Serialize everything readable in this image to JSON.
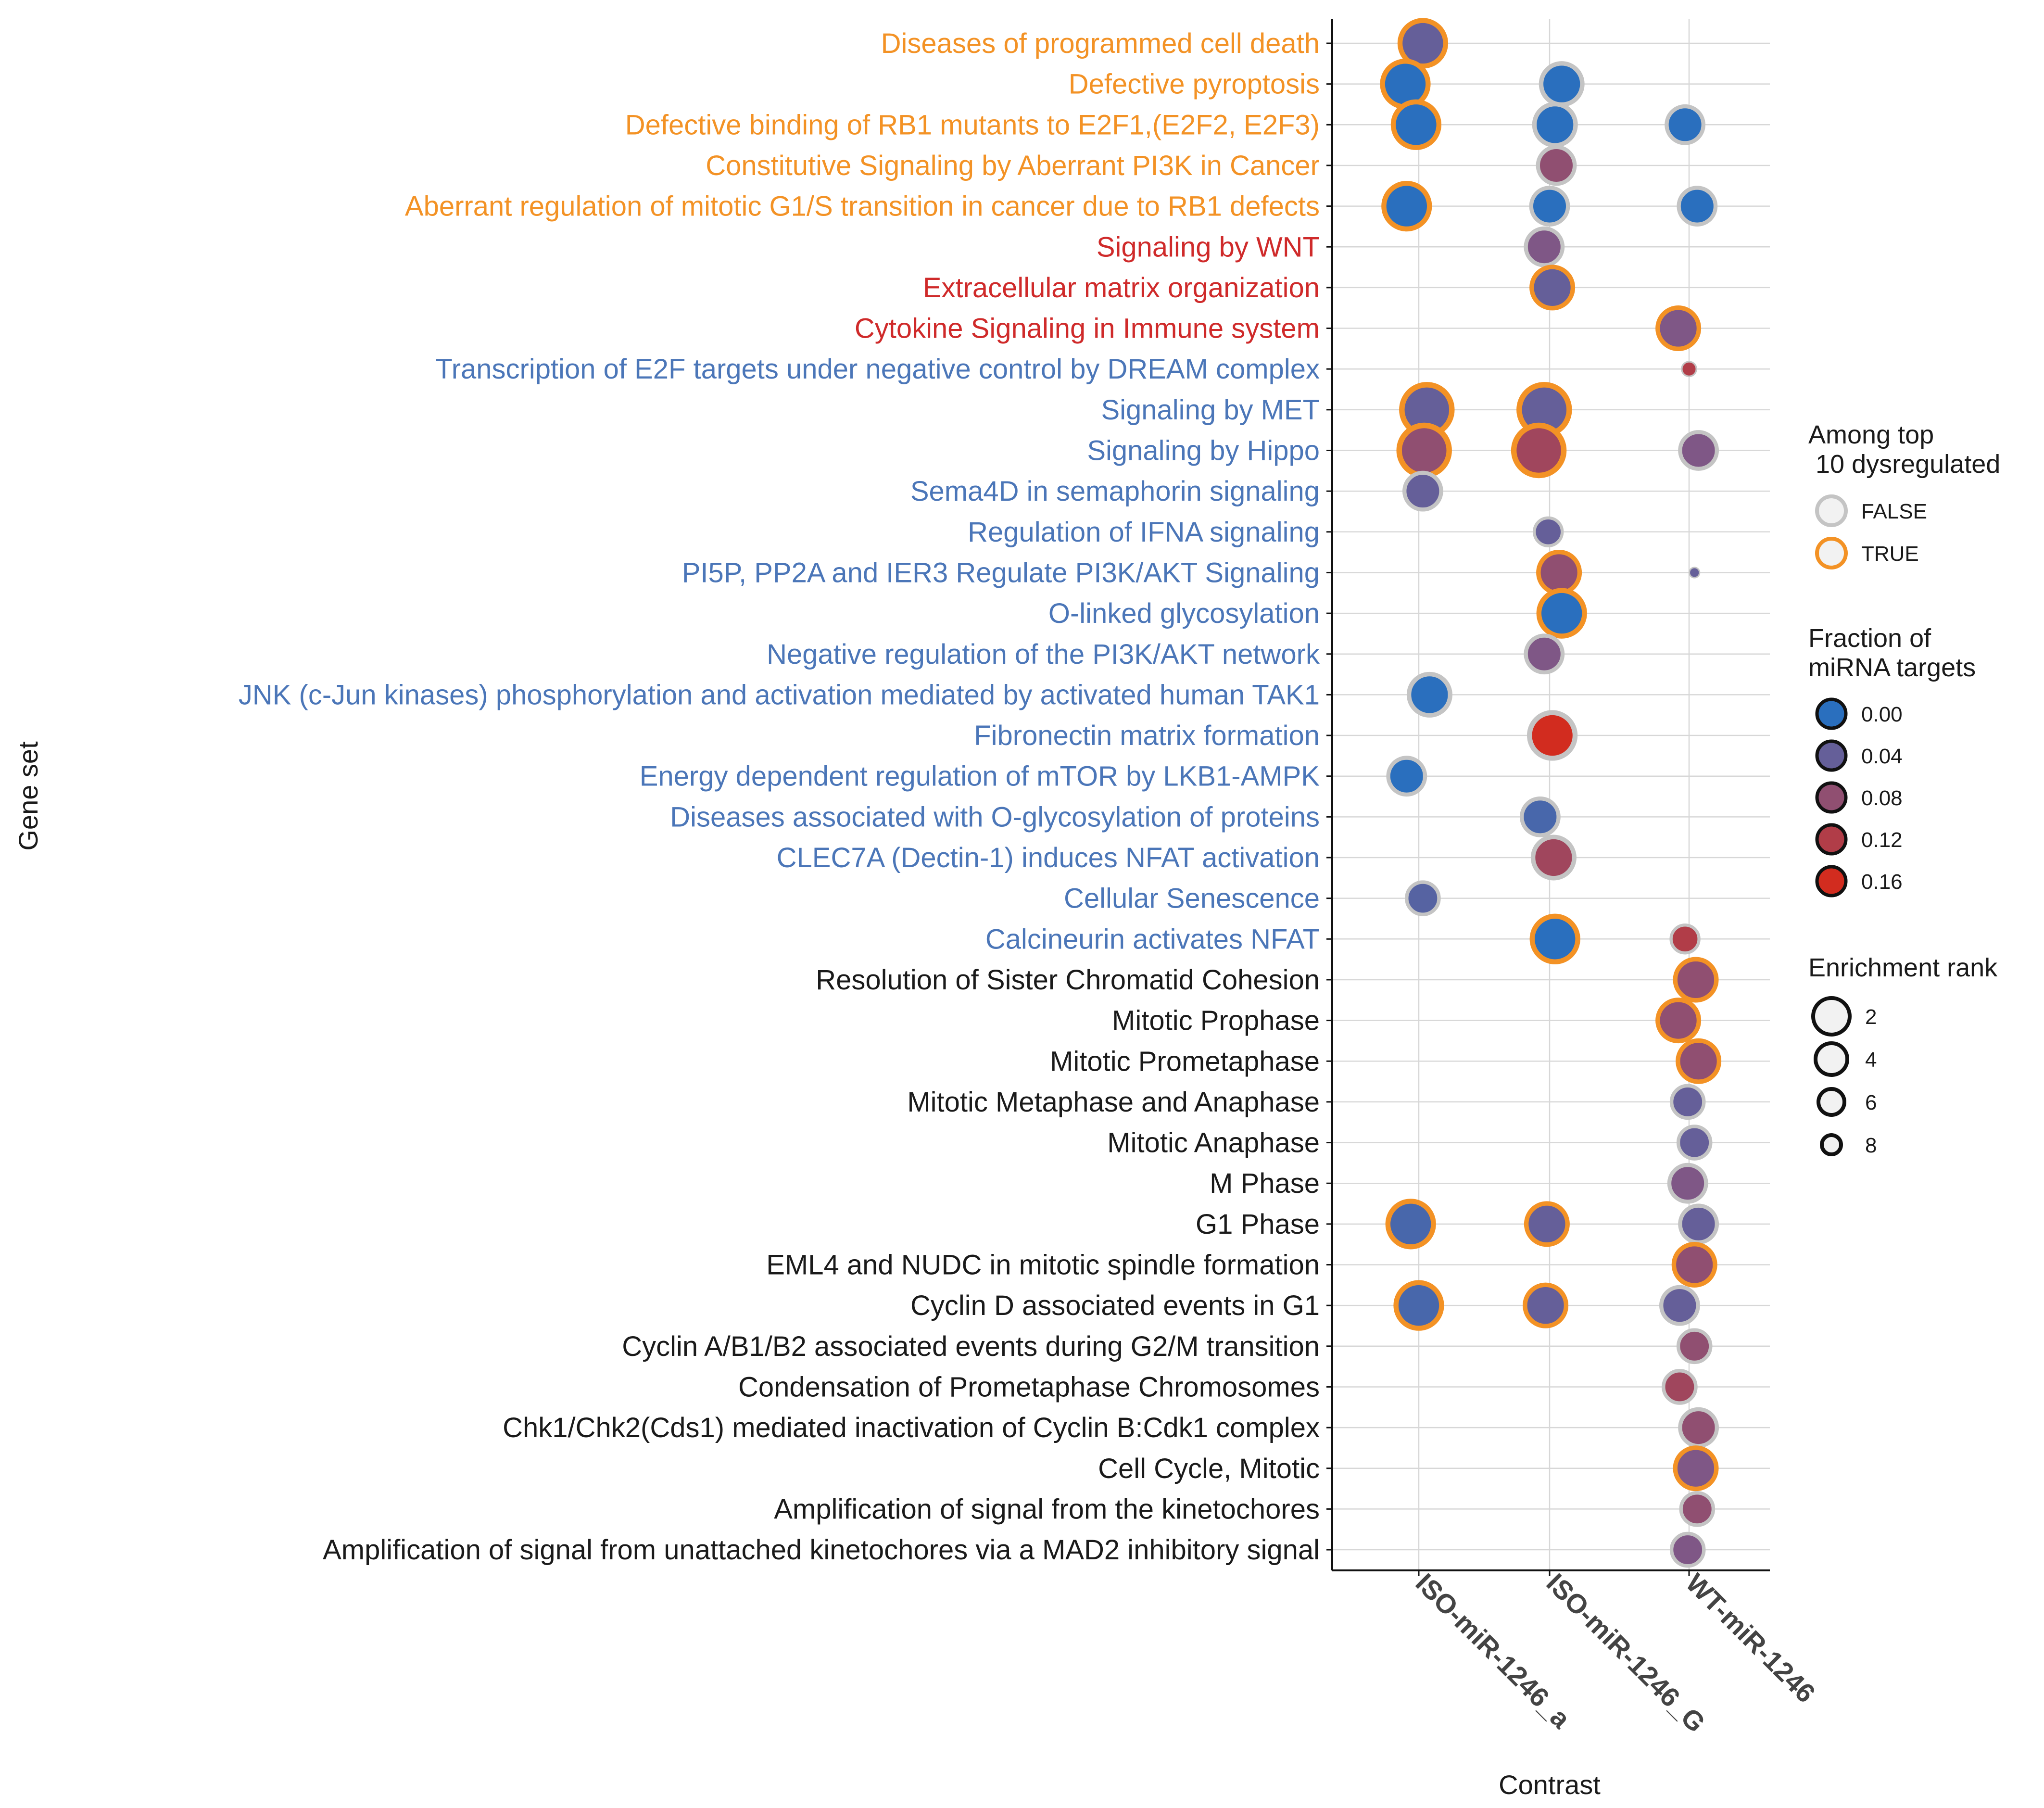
{
  "chart_data": {
    "type": "scatter",
    "title": "",
    "xlabel": "Contrast",
    "ylabel": "Gene set",
    "x_categories": [
      "ISO-miR-1246_a",
      "ISO-miR-1246_G",
      "WT-miR-1246"
    ],
    "group_colors": {
      "orange": "#f39225",
      "red": "#cf2a2a",
      "blue": "#4b76b8",
      "black": "#1a1a1a"
    },
    "ring_colors": {
      "FALSE": "#c4c4c4",
      "TRUE": "#f39225"
    },
    "fill_scale": {
      "low": "#2a6fbe",
      "mid": "#7a5a8c",
      "high": "#e3230b",
      "domain": [
        0,
        0.18
      ]
    },
    "gene_sets": [
      {
        "label": "Diseases of programmed cell death",
        "group": "orange"
      },
      {
        "label": "Defective pyroptosis",
        "group": "orange"
      },
      {
        "label": "Defective binding of RB1 mutants to E2F1,(E2F2, E2F3)",
        "group": "orange"
      },
      {
        "label": "Constitutive Signaling by Aberrant PI3K in Cancer",
        "group": "orange"
      },
      {
        "label": "Aberrant regulation of mitotic G1/S transition in cancer due to RB1 defects",
        "group": "orange"
      },
      {
        "label": "Signaling by WNT",
        "group": "red"
      },
      {
        "label": "Extracellular matrix organization",
        "group": "red"
      },
      {
        "label": "Cytokine Signaling in Immune system",
        "group": "red"
      },
      {
        "label": "Transcription of E2F targets under negative control by DREAM complex",
        "group": "blue"
      },
      {
        "label": "Signaling by MET",
        "group": "blue"
      },
      {
        "label": "Signaling by Hippo",
        "group": "blue"
      },
      {
        "label": "Sema4D in semaphorin signaling",
        "group": "blue"
      },
      {
        "label": "Regulation of IFNA signaling",
        "group": "blue"
      },
      {
        "label": "PI5P, PP2A and IER3 Regulate PI3K/AKT Signaling",
        "group": "blue"
      },
      {
        "label": "O-linked glycosylation",
        "group": "blue"
      },
      {
        "label": "Negative regulation of the PI3K/AKT network",
        "group": "blue"
      },
      {
        "label": "JNK (c-Jun kinases) phosphorylation and activation mediated by activated human TAK1",
        "group": "blue"
      },
      {
        "label": "Fibronectin matrix formation",
        "group": "blue"
      },
      {
        "label": "Energy dependent regulation of mTOR by LKB1-AMPK",
        "group": "blue"
      },
      {
        "label": "Diseases associated with O-glycosylation of proteins",
        "group": "blue"
      },
      {
        "label": "CLEC7A (Dectin-1) induces NFAT activation",
        "group": "blue"
      },
      {
        "label": "Cellular Senescence",
        "group": "blue"
      },
      {
        "label": "Calcineurin activates NFAT",
        "group": "blue"
      },
      {
        "label": "Resolution of Sister Chromatid Cohesion",
        "group": "black"
      },
      {
        "label": "Mitotic Prophase",
        "group": "black"
      },
      {
        "label": "Mitotic Prometaphase",
        "group": "black"
      },
      {
        "label": "Mitotic Metaphase and Anaphase",
        "group": "black"
      },
      {
        "label": "Mitotic Anaphase",
        "group": "black"
      },
      {
        "label": "M Phase",
        "group": "black"
      },
      {
        "label": "G1 Phase",
        "group": "black"
      },
      {
        "label": "EML4 and NUDC in mitotic spindle formation",
        "group": "black"
      },
      {
        "label": "Cyclin D associated events in G1",
        "group": "black"
      },
      {
        "label": "Cyclin A/B1/B2 associated events during G2/M transition",
        "group": "black"
      },
      {
        "label": "Condensation of Prometaphase Chromosomes",
        "group": "black"
      },
      {
        "label": "Chk1/Chk2(Cds1) mediated inactivation of Cyclin B:Cdk1 complex",
        "group": "black"
      },
      {
        "label": "Cell Cycle, Mitotic",
        "group": "black"
      },
      {
        "label": "Amplification of signal from the kinetochores",
        "group": "black"
      },
      {
        "label": "Amplification of signal from unattached kinetochores via a MAD2 inhibitory signal",
        "group": "black"
      }
    ],
    "points": [
      {
        "gene_set": "Diseases of programmed cell death",
        "contrast": "ISO-miR-1246_a",
        "jitter": 0.03,
        "fraction": 0.04,
        "rank": 2,
        "top10": true
      },
      {
        "gene_set": "Defective pyroptosis",
        "contrast": "ISO-miR-1246_a",
        "jitter": -0.1,
        "fraction": 0.0,
        "rank": 2,
        "top10": true
      },
      {
        "gene_set": "Defective pyroptosis",
        "contrast": "ISO-miR-1246_G",
        "jitter": 0.09,
        "fraction": 0.0,
        "rank": 3,
        "top10": false
      },
      {
        "gene_set": "Defective binding of RB1 mutants to E2F1,(E2F2, E2F3)",
        "contrast": "ISO-miR-1246_a",
        "jitter": -0.02,
        "fraction": 0.0,
        "rank": 2,
        "top10": true
      },
      {
        "gene_set": "Defective binding of RB1 mutants to E2F1,(E2F2, E2F3)",
        "contrast": "ISO-miR-1246_G",
        "jitter": 0.04,
        "fraction": 0.0,
        "rank": 3,
        "top10": false
      },
      {
        "gene_set": "Defective binding of RB1 mutants to E2F1,(E2F2, E2F3)",
        "contrast": "WT-miR-1246",
        "jitter": -0.03,
        "fraction": 0.0,
        "rank": 4,
        "top10": false
      },
      {
        "gene_set": "Constitutive Signaling by Aberrant PI3K in Cancer",
        "contrast": "ISO-miR-1246_G",
        "jitter": 0.05,
        "fraction": 0.08,
        "rank": 4,
        "top10": false
      },
      {
        "gene_set": "Aberrant regulation of mitotic G1/S transition in cancer due to RB1 defects",
        "contrast": "ISO-miR-1246_a",
        "jitter": -0.09,
        "fraction": 0.0,
        "rank": 2,
        "top10": true
      },
      {
        "gene_set": "Aberrant regulation of mitotic G1/S transition in cancer due to RB1 defects",
        "contrast": "ISO-miR-1246_G",
        "jitter": 0.0,
        "fraction": 0.0,
        "rank": 4,
        "top10": false
      },
      {
        "gene_set": "Aberrant regulation of mitotic G1/S transition in cancer due to RB1 defects",
        "contrast": "WT-miR-1246",
        "jitter": 0.06,
        "fraction": 0.0,
        "rank": 4,
        "top10": false
      },
      {
        "gene_set": "Signaling by WNT",
        "contrast": "ISO-miR-1246_G",
        "jitter": -0.04,
        "fraction": 0.06,
        "rank": 4,
        "top10": false
      },
      {
        "gene_set": "Extracellular matrix organization",
        "contrast": "ISO-miR-1246_G",
        "jitter": 0.02,
        "fraction": 0.04,
        "rank": 3,
        "top10": true
      },
      {
        "gene_set": "Cytokine Signaling in Immune system",
        "contrast": "WT-miR-1246",
        "jitter": -0.08,
        "fraction": 0.06,
        "rank": 3,
        "top10": true
      },
      {
        "gene_set": "Transcription of E2F targets under negative control by DREAM complex",
        "contrast": "WT-miR-1246",
        "jitter": 0.0,
        "fraction": 0.12,
        "rank": 9,
        "top10": false
      },
      {
        "gene_set": "Signaling by MET",
        "contrast": "ISO-miR-1246_a",
        "jitter": 0.06,
        "fraction": 0.04,
        "rank": 1,
        "top10": true
      },
      {
        "gene_set": "Signaling by MET",
        "contrast": "ISO-miR-1246_G",
        "jitter": -0.04,
        "fraction": 0.04,
        "rank": 1,
        "top10": true
      },
      {
        "gene_set": "Signaling by Hippo",
        "contrast": "ISO-miR-1246_a",
        "jitter": 0.04,
        "fraction": 0.08,
        "rank": 1,
        "top10": true
      },
      {
        "gene_set": "Signaling by Hippo",
        "contrast": "ISO-miR-1246_G",
        "jitter": -0.08,
        "fraction": 0.1,
        "rank": 1,
        "top10": true
      },
      {
        "gene_set": "Signaling by Hippo",
        "contrast": "WT-miR-1246",
        "jitter": 0.07,
        "fraction": 0.06,
        "rank": 4,
        "top10": false
      },
      {
        "gene_set": "Sema4D in semaphorin signaling",
        "contrast": "ISO-miR-1246_a",
        "jitter": 0.03,
        "fraction": 0.04,
        "rank": 4,
        "top10": false
      },
      {
        "gene_set": "Regulation of IFNA signaling",
        "contrast": "ISO-miR-1246_G",
        "jitter": -0.01,
        "fraction": 0.04,
        "rank": 6,
        "top10": false
      },
      {
        "gene_set": "PI5P, PP2A and IER3 Regulate PI3K/AKT Signaling",
        "contrast": "ISO-miR-1246_G",
        "jitter": 0.07,
        "fraction": 0.08,
        "rank": 3,
        "top10": true
      },
      {
        "gene_set": "PI5P, PP2A and IER3 Regulate PI3K/AKT Signaling",
        "contrast": "WT-miR-1246",
        "jitter": 0.04,
        "fraction": 0.04,
        "rank": 10,
        "top10": false
      },
      {
        "gene_set": "O-linked glycosylation",
        "contrast": "ISO-miR-1246_G",
        "jitter": 0.09,
        "fraction": 0.0,
        "rank": 2,
        "top10": true
      },
      {
        "gene_set": "Negative regulation of the PI3K/AKT network",
        "contrast": "ISO-miR-1246_G",
        "jitter": -0.04,
        "fraction": 0.06,
        "rank": 4,
        "top10": false
      },
      {
        "gene_set": "JNK (c-Jun kinases) phosphorylation and activation mediated by activated human TAK1",
        "contrast": "ISO-miR-1246_a",
        "jitter": 0.08,
        "fraction": 0.0,
        "rank": 3,
        "top10": false
      },
      {
        "gene_set": "Fibronectin matrix formation",
        "contrast": "ISO-miR-1246_G",
        "jitter": 0.02,
        "fraction": 0.16,
        "rank": 2,
        "top10": false
      },
      {
        "gene_set": "Energy dependent regulation of mTOR by LKB1-AMPK",
        "contrast": "ISO-miR-1246_a",
        "jitter": -0.09,
        "fraction": 0.0,
        "rank": 4,
        "top10": false
      },
      {
        "gene_set": "Diseases associated with O-glycosylation of proteins",
        "contrast": "ISO-miR-1246_G",
        "jitter": -0.07,
        "fraction": 0.02,
        "rank": 4,
        "top10": false
      },
      {
        "gene_set": "CLEC7A (Dectin-1) induces NFAT activation",
        "contrast": "ISO-miR-1246_G",
        "jitter": 0.03,
        "fraction": 0.1,
        "rank": 3,
        "top10": false
      },
      {
        "gene_set": "Cellular Senescence",
        "contrast": "ISO-miR-1246_a",
        "jitter": 0.03,
        "fraction": 0.03,
        "rank": 5,
        "top10": false
      },
      {
        "gene_set": "Calcineurin activates NFAT",
        "contrast": "ISO-miR-1246_G",
        "jitter": 0.04,
        "fraction": 0.0,
        "rank": 2,
        "top10": true
      },
      {
        "gene_set": "Calcineurin activates NFAT",
        "contrast": "WT-miR-1246",
        "jitter": -0.03,
        "fraction": 0.12,
        "rank": 6,
        "top10": false
      },
      {
        "gene_set": "Resolution of Sister Chromatid Cohesion",
        "contrast": "WT-miR-1246",
        "jitter": 0.05,
        "fraction": 0.08,
        "rank": 3,
        "top10": true
      },
      {
        "gene_set": "Mitotic Prophase",
        "contrast": "WT-miR-1246",
        "jitter": -0.08,
        "fraction": 0.08,
        "rank": 3,
        "top10": true
      },
      {
        "gene_set": "Mitotic Prometaphase",
        "contrast": "WT-miR-1246",
        "jitter": 0.07,
        "fraction": 0.08,
        "rank": 3,
        "top10": true
      },
      {
        "gene_set": "Mitotic Metaphase and Anaphase",
        "contrast": "WT-miR-1246",
        "jitter": -0.01,
        "fraction": 0.04,
        "rank": 5,
        "top10": false
      },
      {
        "gene_set": "Mitotic Anaphase",
        "contrast": "WT-miR-1246",
        "jitter": 0.04,
        "fraction": 0.04,
        "rank": 5,
        "top10": false
      },
      {
        "gene_set": "M Phase",
        "contrast": "WT-miR-1246",
        "jitter": -0.01,
        "fraction": 0.06,
        "rank": 4,
        "top10": false
      },
      {
        "gene_set": "G1 Phase",
        "contrast": "ISO-miR-1246_a",
        "jitter": -0.06,
        "fraction": 0.02,
        "rank": 2,
        "top10": true
      },
      {
        "gene_set": "G1 Phase",
        "contrast": "ISO-miR-1246_G",
        "jitter": -0.02,
        "fraction": 0.04,
        "rank": 3,
        "top10": true
      },
      {
        "gene_set": "G1 Phase",
        "contrast": "WT-miR-1246",
        "jitter": 0.07,
        "fraction": 0.04,
        "rank": 4,
        "top10": false
      },
      {
        "gene_set": "EML4 and NUDC in mitotic spindle formation",
        "contrast": "WT-miR-1246",
        "jitter": 0.04,
        "fraction": 0.08,
        "rank": 3,
        "top10": true
      },
      {
        "gene_set": "Cyclin D associated events in G1",
        "contrast": "ISO-miR-1246_a",
        "jitter": 0.0,
        "fraction": 0.02,
        "rank": 2,
        "top10": true
      },
      {
        "gene_set": "Cyclin D associated events in G1",
        "contrast": "ISO-miR-1246_G",
        "jitter": -0.03,
        "fraction": 0.04,
        "rank": 3,
        "top10": true
      },
      {
        "gene_set": "Cyclin D associated events in G1",
        "contrast": "WT-miR-1246",
        "jitter": -0.07,
        "fraction": 0.04,
        "rank": 4,
        "top10": false
      },
      {
        "gene_set": "Cyclin A/B1/B2 associated events during G2/M transition",
        "contrast": "WT-miR-1246",
        "jitter": 0.04,
        "fraction": 0.08,
        "rank": 5,
        "top10": false
      },
      {
        "gene_set": "Condensation of Prometaphase Chromosomes",
        "contrast": "WT-miR-1246",
        "jitter": -0.07,
        "fraction": 0.1,
        "rank": 5,
        "top10": false
      },
      {
        "gene_set": "Chk1/Chk2(Cds1) mediated inactivation of Cyclin B:Cdk1 complex",
        "contrast": "WT-miR-1246",
        "jitter": 0.07,
        "fraction": 0.08,
        "rank": 4,
        "top10": false
      },
      {
        "gene_set": "Cell Cycle, Mitotic",
        "contrast": "WT-miR-1246",
        "jitter": 0.05,
        "fraction": 0.06,
        "rank": 3,
        "top10": true
      },
      {
        "gene_set": "Amplification of signal from the kinetochores",
        "contrast": "WT-miR-1246",
        "jitter": 0.06,
        "fraction": 0.08,
        "rank": 5,
        "top10": false
      },
      {
        "gene_set": "Amplification of signal from unattached kinetochores via a MAD2 inhibitory signal",
        "contrast": "WT-miR-1246",
        "jitter": -0.01,
        "fraction": 0.06,
        "rank": 5,
        "top10": false
      }
    ],
    "legend": {
      "placement": "right",
      "top10": {
        "title_line1": "Among top",
        "title_line2": " 10 dysregulated",
        "entries": [
          "FALSE",
          "TRUE"
        ]
      },
      "fraction": {
        "title_line1": "Fraction of",
        "title_line2": "miRNA targets",
        "entries": [
          "0.00",
          "0.04",
          "0.08",
          "0.12",
          "0.16"
        ],
        "values": [
          0,
          0.04,
          0.08,
          0.12,
          0.16
        ]
      },
      "rank": {
        "title": "Enrichment rank",
        "entries": [
          "2",
          "4",
          "6",
          "8"
        ],
        "values": [
          2,
          4,
          6,
          8
        ]
      }
    }
  }
}
